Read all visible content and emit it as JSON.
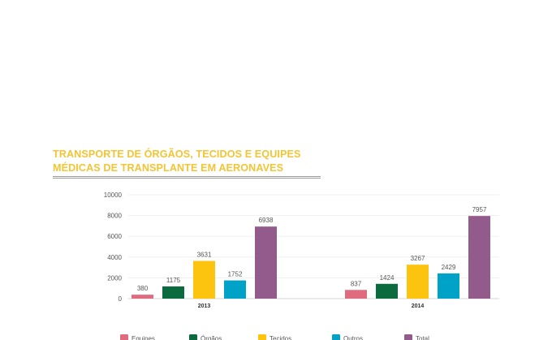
{
  "header": {
    "title_line1": "TRANSPORTE DE ÓRGÃOS, TECIDOS E EQUIPES",
    "title_line2": "MÉDICAS DE TRANSPLANTE EM AERONAVES"
  },
  "chart_data": {
    "type": "bar",
    "title": "TRANSPORTE DE ÓRGÃOS, TECIDOS E EQUIPES MÉDICAS DE TRANSPLANTE EM AERONAVES",
    "categories": [
      "2013",
      "2014"
    ],
    "series": [
      {
        "name": "Equipes",
        "color": "#e06b7f",
        "values": [
          380,
          837
        ]
      },
      {
        "name": "Órgãos",
        "color": "#0b6b3e",
        "values": [
          1175,
          1424
        ]
      },
      {
        "name": "Tecidos",
        "color": "#fdc40f",
        "values": [
          3631,
          3267
        ]
      },
      {
        "name": "Outros",
        "color": "#00a2c8",
        "values": [
          1752,
          2429
        ]
      },
      {
        "name": "Total",
        "color": "#935a8c",
        "values": [
          6938,
          7957
        ]
      }
    ],
    "ylim": [
      0,
      10000
    ],
    "yticks": [
      0,
      2000,
      4000,
      6000,
      8000,
      10000
    ],
    "grid": true,
    "legend": "bottom"
  }
}
